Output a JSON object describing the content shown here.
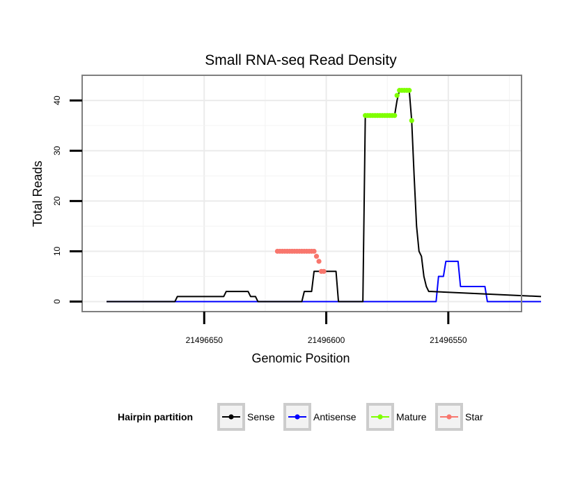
{
  "chart_data": {
    "type": "line",
    "title": "Small RNA-seq Read Density",
    "xlabel": "Genomic Position",
    "ylabel": "Total Reads",
    "xlim": [
      21496700,
      21496520
    ],
    "ylim": [
      -2,
      45
    ],
    "x_ticks": [
      21496650,
      21496600,
      21496550
    ],
    "x_tick_labels": [
      "21496650",
      "21496600",
      "21496550"
    ],
    "y_ticks": [
      0,
      10,
      20,
      30,
      40
    ],
    "y_tick_labels": [
      "0",
      "10",
      "20",
      "30",
      "40"
    ],
    "grid": true,
    "legend": {
      "title": "Hairpin partition",
      "position": "bottom",
      "entries": [
        {
          "label": "Sense",
          "color": "#000000"
        },
        {
          "label": "Antisense",
          "color": "#0000FF"
        },
        {
          "label": "Mature",
          "color": "#7FFF00"
        },
        {
          "label": "Star",
          "color": "#F8766D"
        }
      ]
    },
    "series": [
      {
        "name": "Sense",
        "color": "#000000",
        "x": [
          21496690,
          21496662,
          21496661,
          21496654,
          21496653,
          21496642,
          21496641,
          21496636,
          21496635,
          21496632,
          21496631,
          21496630,
          21496629,
          21496628,
          21496610,
          21496609,
          21496606,
          21496605,
          21496596,
          21496595,
          21496594,
          21496585,
          21496584,
          21496583,
          21496582,
          21496581,
          21496580,
          21496579,
          21496578,
          21496577,
          21496576,
          21496575,
          21496574,
          21496573,
          21496572,
          21496571,
          21496570,
          21496569,
          21496568,
          21496567,
          21496566,
          21496565,
          21496564,
          21496563,
          21496562,
          21496561,
          21496560,
          21496559,
          21496558,
          21496557,
          21496512
        ],
        "y": [
          0,
          0,
          1,
          1,
          1,
          1,
          2,
          2,
          2,
          2,
          1,
          1,
          1,
          0,
          0,
          2,
          2,
          6,
          6,
          0,
          0,
          0,
          37,
          37,
          37,
          37,
          37,
          37,
          37,
          37,
          37,
          37,
          37,
          37,
          37,
          40,
          42,
          42,
          42,
          42,
          42,
          36,
          25,
          15,
          10,
          9,
          5,
          3,
          2,
          2,
          1
        ]
      },
      {
        "name": "Antisense",
        "color": "#0000FF",
        "x": [
          21496690,
          21496555,
          21496554,
          21496553,
          21496552,
          21496551,
          21496550,
          21496549,
          21496548,
          21496547,
          21496546,
          21496545,
          21496544,
          21496535,
          21496534,
          21496533,
          21496512
        ],
        "y": [
          0,
          0,
          5,
          5,
          5,
          8,
          8,
          8,
          8,
          8,
          8,
          3,
          3,
          3,
          0,
          0,
          0
        ]
      },
      {
        "name": "Mature",
        "color": "#7FFF00",
        "points": true,
        "x": [
          21496584,
          21496583,
          21496582,
          21496581,
          21496580,
          21496579,
          21496578,
          21496577,
          21496576,
          21496575,
          21496574,
          21496573,
          21496572,
          21496571,
          21496570,
          21496569,
          21496568,
          21496567,
          21496566,
          21496565
        ],
        "y": [
          37,
          37,
          37,
          37,
          37,
          37,
          37,
          37,
          37,
          37,
          37,
          37,
          37,
          41,
          42,
          42,
          42,
          42,
          42,
          36
        ]
      },
      {
        "name": "Star",
        "color": "#F8766D",
        "points": true,
        "x": [
          21496620,
          21496619,
          21496618,
          21496617,
          21496616,
          21496615,
          21496614,
          21496613,
          21496612,
          21496611,
          21496610,
          21496609,
          21496608,
          21496607,
          21496606,
          21496605,
          21496604,
          21496603,
          21496602,
          21496601
        ],
        "y": [
          10,
          10,
          10,
          10,
          10,
          10,
          10,
          10,
          10,
          10,
          10,
          10,
          10,
          10,
          10,
          10,
          9,
          8,
          6,
          6
        ]
      }
    ]
  }
}
